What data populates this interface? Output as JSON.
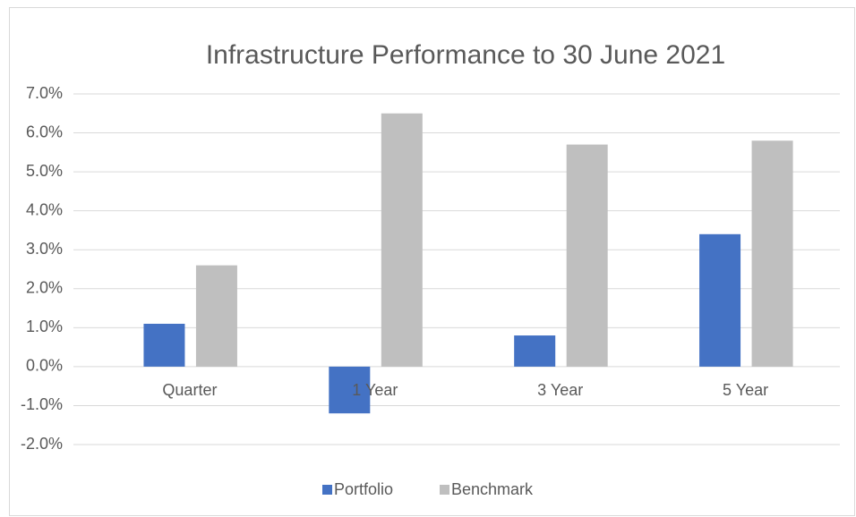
{
  "chart_data": {
    "type": "bar",
    "title": "Infrastructure Performance to 30 June 2021",
    "categories": [
      "Quarter",
      "1 Year",
      "3 Year",
      "5 Year"
    ],
    "series": [
      {
        "name": "Portfolio",
        "color": "#4472c4",
        "values": [
          1.1,
          -1.2,
          0.8,
          3.4
        ]
      },
      {
        "name": "Benchmark",
        "color": "#bfbfbf",
        "values": [
          2.6,
          6.5,
          5.7,
          5.8
        ]
      }
    ],
    "ylim": [
      -2,
      7
    ],
    "yticks": [
      {
        "value": -2,
        "label": "-2.0%"
      },
      {
        "value": -1,
        "label": "-1.0%"
      },
      {
        "value": 0,
        "label": "0.0%"
      },
      {
        "value": 1,
        "label": "1.0%"
      },
      {
        "value": 2,
        "label": "2.0%"
      },
      {
        "value": 3,
        "label": "3.0%"
      },
      {
        "value": 4,
        "label": "4.0%"
      },
      {
        "value": 5,
        "label": "5.0%"
      },
      {
        "value": 6,
        "label": "6.0%"
      },
      {
        "value": 7,
        "label": "7.0%"
      }
    ],
    "grid": true,
    "legend": "bottom"
  }
}
